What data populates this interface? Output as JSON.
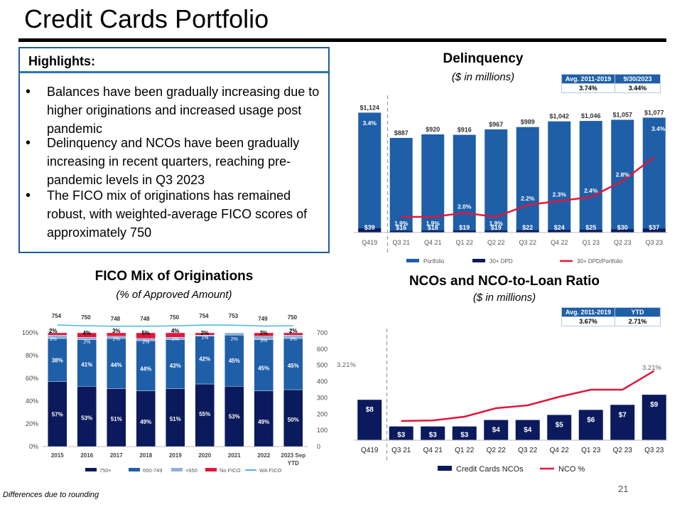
{
  "title": "Credit Cards Portfolio",
  "highlights": {
    "heading": "Highlights:",
    "bullets": [
      "Balances have been gradually increasing due to higher originations and increased usage post pandemic",
      "Delinquency and NCOs have been gradually increasing in recent quarters, reaching pre-pandemic levels in Q3 2023",
      "The FICO mix of originations has remained robust, with weighted-average FICO scores of approximately 750"
    ]
  },
  "delinquency": {
    "title": "Delinquency",
    "subtitle": "($ in millions)",
    "avg_table": {
      "headers": [
        "Avg. 2011-2019",
        "9/30/2023"
      ],
      "values": [
        "3.74%",
        "3.44%"
      ]
    }
  },
  "fico": {
    "title": "FICO Mix of Originations",
    "subtitle": "(% of Approved Amount)"
  },
  "nco": {
    "title": "NCOs and NCO-to-Loan Ratio",
    "subtitle": "($ in millions)",
    "avg_table": {
      "headers": [
        "Avg. 2011-2019",
        "YTD"
      ],
      "values": [
        "3.67%",
        "2.71%"
      ]
    }
  },
  "footnote": "Differences due to rounding",
  "page_number": "21",
  "colors": {
    "dark_navy": "#0a1a5c",
    "blue": "#1e5fa8",
    "light_blue": "#8fb0d9",
    "red": "#e0173c",
    "wa_line": "#4db4e6",
    "highlight_border": "#1f5c99"
  },
  "chart_data": [
    {
      "type": "bar",
      "name": "delinquency",
      "categories": [
        "Q419",
        "Q3 21",
        "Q4 21",
        "Q1 22",
        "Q2 22",
        "Q3 22",
        "Q4 22",
        "Q1 23",
        "Q2 23",
        "Q3 23"
      ],
      "series": [
        {
          "name": "Portfolio",
          "kind": "bar",
          "values": [
            1124,
            887,
            920,
            916,
            967,
            989,
            1042,
            1046,
            1057,
            1077
          ],
          "labels": [
            "$1,124",
            "$887",
            "$920",
            "$916",
            "$967",
            "$989",
            "$1,042",
            "$1,046",
            "$1,057",
            "$1,077"
          ]
        },
        {
          "name": "30+ DPD",
          "kind": "bar",
          "values": [
            39,
            16,
            18,
            19,
            19,
            22,
            24,
            25,
            30,
            37
          ],
          "labels": [
            "$39",
            "$16",
            "$18",
            "$19",
            "$19",
            "$22",
            "$24",
            "$25",
            "$30",
            "$37"
          ]
        },
        {
          "name": "30+ DPD/Portfolio",
          "kind": "line",
          "values": [
            3.4,
            1.9,
            1.9,
            2.0,
            1.9,
            2.2,
            2.3,
            2.4,
            2.8,
            3.4
          ],
          "labels": [
            "3.4%",
            "1.9%",
            "1.9%",
            "2.0%",
            "1.9%",
            "2.2%",
            "2.3%",
            "2.4%",
            "2.8%",
            "3.4%"
          ]
        }
      ],
      "legend": [
        "Portfolio",
        "30+ DPD",
        "30+ DPD/Portfolio"
      ]
    },
    {
      "type": "bar",
      "name": "fico_mix",
      "stacked": true,
      "categories": [
        "2015",
        "2016",
        "2017",
        "2018",
        "2019",
        "2020",
        "2021",
        "2022",
        "2023 Sep YTD"
      ],
      "series": [
        {
          "name": "750+",
          "values": [
            57,
            53,
            51,
            49,
            51,
            55,
            53,
            49,
            50
          ]
        },
        {
          "name": "650-749",
          "values": [
            38,
            41,
            44,
            44,
            43,
            42,
            45,
            45,
            45
          ]
        },
        {
          "name": "<650",
          "values": [
            3,
            2,
            2,
            2,
            2,
            1,
            2,
            3,
            3
          ]
        },
        {
          "name": "No FICO",
          "values": [
            2,
            4,
            3,
            5,
            4,
            2,
            0,
            3,
            2
          ]
        },
        {
          "name": "WA FICO",
          "kind": "line",
          "values": [
            754,
            750,
            748,
            748,
            750,
            754,
            753,
            749,
            750
          ]
        }
      ],
      "label_overrides": {
        "<650": [
          "3%",
          "2%",
          "2%",
          "2%",
          "2%",
          "1%",
          "2%",
          "3%",
          "3%"
        ],
        "No FICO": [
          "2%",
          "4%",
          "3%",
          "5%",
          "4%",
          "2%",
          "",
          "3%",
          "2%"
        ]
      },
      "y_left": {
        "ticks": [
          "0%",
          "20%",
          "40%",
          "60%",
          "80%",
          "100%"
        ]
      },
      "y_right": {
        "ticks": [
          "0",
          "100",
          "200",
          "300",
          "400",
          "500",
          "600",
          "700"
        ]
      },
      "legend": [
        "750+",
        "650-749",
        "<650",
        "No FICO",
        "WA FICO"
      ]
    },
    {
      "type": "bar",
      "name": "ncos",
      "categories": [
        "Q419",
        "Q3 21",
        "Q4 21",
        "Q1 22",
        "Q2 22",
        "Q3 22",
        "Q4 22",
        "Q1 23",
        "Q2 23",
        "Q3 23"
      ],
      "series": [
        {
          "name": "Credit Cards NCOs",
          "kind": "bar",
          "values": [
            8,
            3,
            3,
            3,
            4,
            4,
            5,
            6,
            7,
            9
          ],
          "labels": [
            "$8",
            "$3",
            "$3",
            "$3",
            "$4",
            "$4",
            "$5",
            "$6",
            "$7",
            "$9"
          ]
        },
        {
          "name": "NCO %",
          "kind": "line",
          "values": [
            3.21,
            1.45,
            1.47,
            1.6,
            1.9,
            2.0,
            2.3,
            2.55,
            2.55,
            3.21
          ]
        }
      ],
      "line_end_labels": [
        "3.21%",
        "3.21%"
      ],
      "legend": [
        "Credit Cards NCOs",
        "NCO %"
      ]
    }
  ]
}
